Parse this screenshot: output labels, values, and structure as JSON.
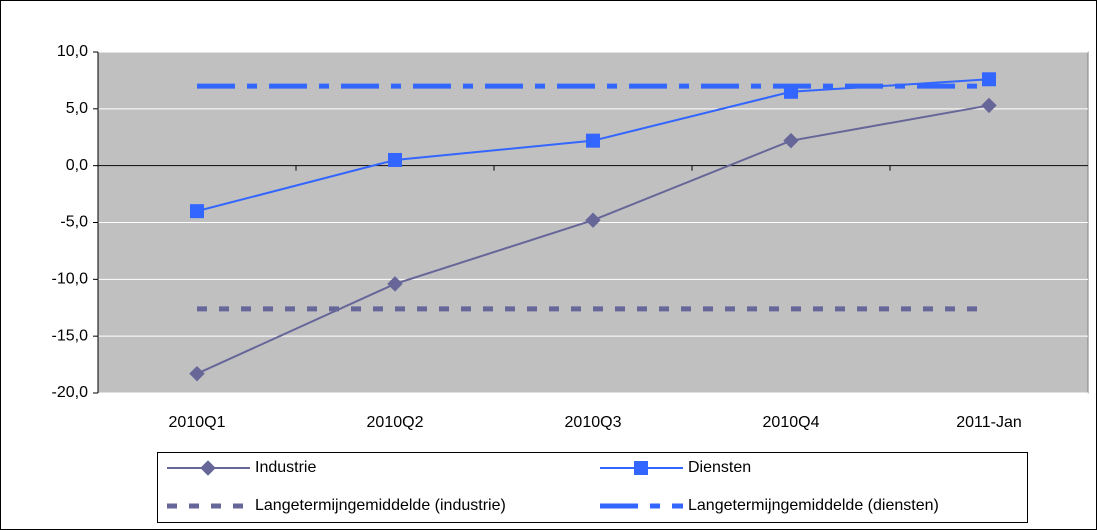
{
  "chart_data": {
    "type": "line",
    "categories": [
      "2010Q1",
      "2010Q2",
      "2010Q3",
      "2010Q4",
      "2011-Jan"
    ],
    "series": [
      {
        "name": "Industrie",
        "color": "#666699",
        "line_style": "solid",
        "marker": "diamond",
        "values": [
          -18.3,
          -10.4,
          -4.8,
          2.2,
          5.3
        ]
      },
      {
        "name": "Diensten",
        "color": "#3366ff",
        "line_style": "solid",
        "marker": "square",
        "values": [
          -4.0,
          0.5,
          2.2,
          6.5,
          7.6
        ]
      },
      {
        "name": "Langetermijngemiddelde (industrie)",
        "color": "#666699",
        "line_style": "dashed",
        "marker": "none",
        "values": [
          -12.6,
          -12.6,
          -12.6,
          -12.6,
          -12.6
        ]
      },
      {
        "name": "Langetermijngemiddelde (diensten)",
        "color": "#3366ff",
        "line_style": "dashdot",
        "marker": "none",
        "values": [
          7.0,
          7.0,
          7.0,
          7.0,
          7.0
        ]
      }
    ],
    "ylim": [
      -20,
      10
    ],
    "yticks": [
      {
        "value": -20,
        "label": "-20,0"
      },
      {
        "value": -15,
        "label": "-15,0"
      },
      {
        "value": -10,
        "label": "-10,0"
      },
      {
        "value": -5,
        "label": "-5,0"
      },
      {
        "value": 0,
        "label": "0,0"
      },
      {
        "value": 5,
        "label": "5,0"
      },
      {
        "value": 10,
        "label": "10,0"
      }
    ],
    "grid": true,
    "legend": "bottom"
  }
}
